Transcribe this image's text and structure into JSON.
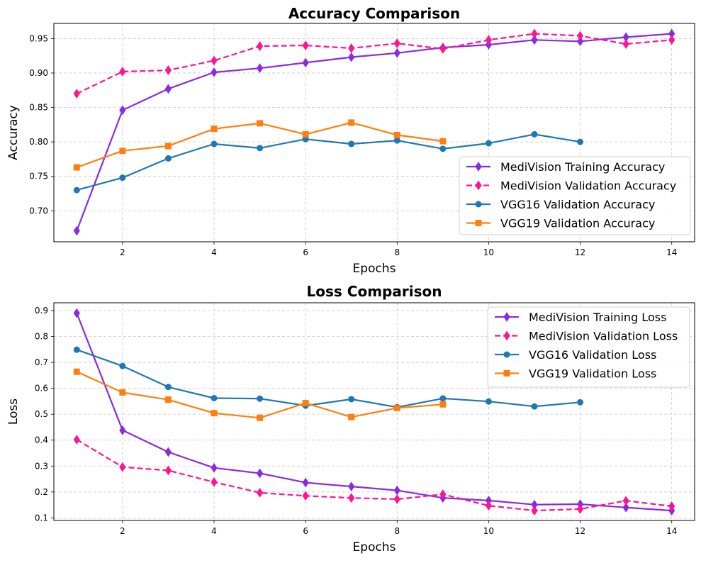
{
  "chart_data": [
    {
      "type": "line",
      "title": "Accuracy Comparison",
      "xlabel": "Epochs",
      "ylabel": "Accuracy",
      "xlim": [
        0.5,
        14.5
      ],
      "ylim": [
        0.655,
        0.972
      ],
      "xticks": [
        2,
        4,
        6,
        8,
        10,
        12,
        14
      ],
      "xtick_labels": [
        "2",
        "4",
        "6",
        "8",
        "10",
        "12",
        "14"
      ],
      "yticks": [
        0.7,
        0.75,
        0.8,
        0.85,
        0.9,
        0.95
      ],
      "ytick_labels": [
        "0.70",
        "0.75",
        "0.80",
        "0.85",
        "0.90",
        "0.95"
      ],
      "grid": true,
      "legend_position": "lower-right",
      "series": [
        {
          "name": "MediVision Training Accuracy",
          "color": "#8a2be2",
          "line_style": "solid",
          "marker": "diamond",
          "x": [
            1,
            2,
            3,
            4,
            5,
            6,
            7,
            8,
            9,
            10,
            11,
            12,
            13,
            14
          ],
          "values": [
            0.671,
            0.846,
            0.877,
            0.901,
            0.907,
            0.915,
            0.923,
            0.929,
            0.937,
            0.941,
            0.948,
            0.946,
            0.952,
            0.957
          ]
        },
        {
          "name": "MediVision Validation Accuracy",
          "color": "#ff1493",
          "line_style": "dashed",
          "marker": "diamond",
          "x": [
            1,
            2,
            3,
            4,
            5,
            6,
            7,
            8,
            9,
            10,
            11,
            12,
            13,
            14
          ],
          "values": [
            0.87,
            0.902,
            0.904,
            0.918,
            0.939,
            0.94,
            0.936,
            0.943,
            0.935,
            0.948,
            0.957,
            0.954,
            0.942,
            0.948
          ]
        },
        {
          "name": "VGG16 Validation Accuracy",
          "color": "#1f77b4",
          "line_style": "solid",
          "marker": "circle",
          "x": [
            1,
            2,
            3,
            4,
            5,
            6,
            7,
            8,
            9,
            10,
            11,
            12
          ],
          "values": [
            0.73,
            0.748,
            0.776,
            0.797,
            0.791,
            0.804,
            0.797,
            0.802,
            0.79,
            0.798,
            0.811,
            0.8
          ]
        },
        {
          "name": "VGG19 Validation Accuracy",
          "color": "#ff7f0e",
          "line_style": "solid",
          "marker": "square",
          "x": [
            1,
            2,
            3,
            4,
            5,
            6,
            7,
            8,
            9
          ],
          "values": [
            0.763,
            0.787,
            0.794,
            0.819,
            0.827,
            0.811,
            0.828,
            0.81,
            0.801
          ]
        }
      ]
    },
    {
      "type": "line",
      "title": "Loss Comparison",
      "xlabel": "Epochs",
      "ylabel": "Loss",
      "xlim": [
        0.5,
        14.5
      ],
      "ylim": [
        0.09,
        0.93
      ],
      "xticks": [
        2,
        4,
        6,
        8,
        10,
        12,
        14
      ],
      "xtick_labels": [
        "2",
        "4",
        "6",
        "8",
        "10",
        "12",
        "14"
      ],
      "yticks": [
        0.1,
        0.2,
        0.3,
        0.4,
        0.5,
        0.6,
        0.7,
        0.8,
        0.9
      ],
      "ytick_labels": [
        "0.1",
        "0.2",
        "0.3",
        "0.4",
        "0.5",
        "0.6",
        "0.7",
        "0.8",
        "0.9"
      ],
      "grid": true,
      "legend_position": "upper-right",
      "series": [
        {
          "name": "MediVision Training Loss",
          "color": "#8a2be2",
          "line_style": "solid",
          "marker": "diamond",
          "x": [
            1,
            2,
            3,
            4,
            5,
            6,
            7,
            8,
            9,
            10,
            11,
            12,
            13,
            14
          ],
          "values": [
            0.89,
            0.438,
            0.354,
            0.293,
            0.272,
            0.236,
            0.221,
            0.206,
            0.177,
            0.167,
            0.151,
            0.153,
            0.14,
            0.128
          ]
        },
        {
          "name": "MediVision Validation Loss",
          "color": "#ff1493",
          "line_style": "dashed",
          "marker": "diamond",
          "x": [
            1,
            2,
            3,
            4,
            5,
            6,
            7,
            8,
            9,
            10,
            11,
            12,
            13,
            14
          ],
          "values": [
            0.402,
            0.296,
            0.283,
            0.238,
            0.197,
            0.185,
            0.177,
            0.172,
            0.191,
            0.147,
            0.128,
            0.134,
            0.166,
            0.145
          ]
        },
        {
          "name": "VGG16 Validation Loss",
          "color": "#1f77b4",
          "line_style": "solid",
          "marker": "circle",
          "x": [
            1,
            2,
            3,
            4,
            5,
            6,
            7,
            8,
            9,
            10,
            11,
            12
          ],
          "values": [
            0.749,
            0.686,
            0.605,
            0.562,
            0.56,
            0.533,
            0.558,
            0.527,
            0.561,
            0.549,
            0.53,
            0.546
          ]
        },
        {
          "name": "VGG19 Validation Loss",
          "color": "#ff7f0e",
          "line_style": "solid",
          "marker": "square",
          "x": [
            1,
            2,
            3,
            4,
            5,
            6,
            7,
            8,
            9
          ],
          "values": [
            0.664,
            0.584,
            0.556,
            0.504,
            0.486,
            0.543,
            0.489,
            0.524,
            0.538
          ]
        }
      ]
    }
  ]
}
